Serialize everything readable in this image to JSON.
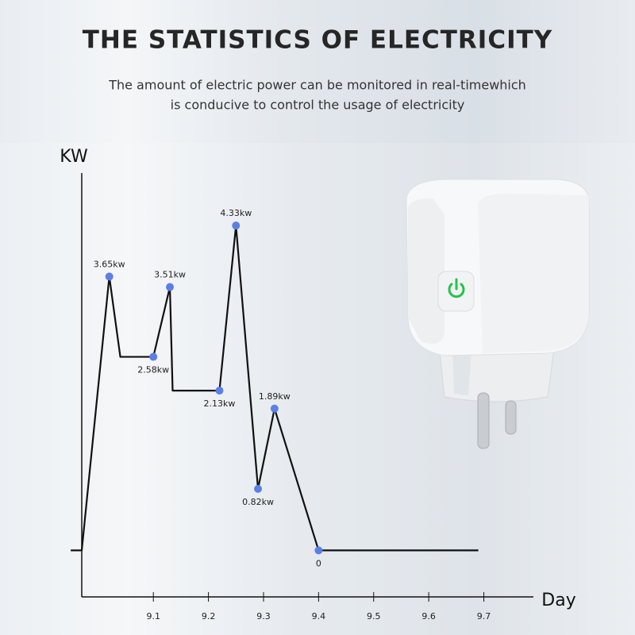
{
  "chart_data": {
    "type": "line",
    "title": "THE STATISTICS OF ELECTRICITY",
    "subtitle": [
      "The amount of electric power can be monitored in real-timewhich",
      "is conducive to control the usage of electricity"
    ],
    "y_label": "KW",
    "x_label": "Day",
    "xlim": [
      8.97,
      9.79
    ],
    "ylim": [
      -0.62,
      5.03
    ],
    "xticks": [
      9.1,
      9.2,
      9.3,
      9.4,
      9.5,
      9.6,
      9.7
    ],
    "series": [
      {
        "color": "#111111",
        "marker_color": "#5b7fe6",
        "x": [
          8.95,
          8.97,
          9.02,
          9.04,
          9.1,
          9.13,
          9.135,
          9.22,
          9.25,
          9.29,
          9.32,
          9.4,
          9.69
        ],
        "values": [
          0,
          0,
          3.65,
          2.58,
          2.58,
          3.51,
          2.13,
          2.13,
          4.33,
          0.82,
          1.89,
          0,
          0
        ],
        "value_labels": [
          null,
          null,
          "3.65kw",
          null,
          "2.58kw",
          "3.51kw",
          null,
          "2.13kw",
          "4.33kw",
          "0.82kw",
          "1.89kw",
          "0",
          null
        ]
      }
    ]
  }
}
